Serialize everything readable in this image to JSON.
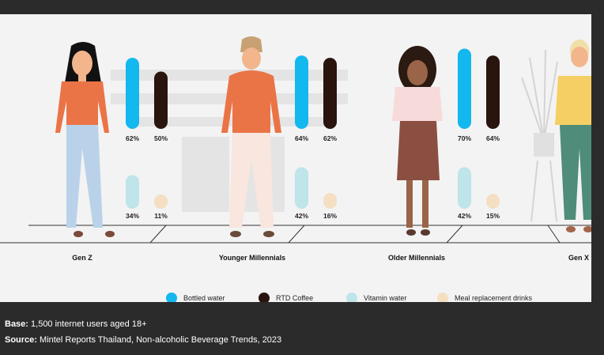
{
  "chart_data": {
    "type": "bar",
    "categories": [
      "Gen Z",
      "Younger Millennials",
      "Older Millennials",
      "Gen X"
    ],
    "series": [
      {
        "name": "Bottled water",
        "values": [
          62,
          64,
          70,
          null
        ],
        "color": "#12b8ee"
      },
      {
        "name": "RTD Coffee",
        "values": [
          50,
          62,
          64,
          null
        ],
        "color": "#2a140e"
      },
      {
        "name": "Vitamin water",
        "values": [
          34,
          42,
          42,
          null
        ],
        "color": "#bfe4ea"
      },
      {
        "name": "Meal replacement drinks",
        "values": [
          11,
          16,
          15,
          null
        ],
        "color": "#f4dfc3"
      }
    ],
    "labels": {
      "Bottled water": [
        "62%",
        "64%",
        "70%"
      ],
      "RTD Coffee": [
        "50%",
        "62%",
        "64%"
      ],
      "Vitamin water": [
        "34%",
        "42%",
        "42%"
      ],
      "Meal replacement drinks": [
        "11%",
        "16%",
        "15%"
      ]
    }
  },
  "legend": [
    {
      "label": "Bottled water",
      "color": "#12b8ee"
    },
    {
      "label": "RTD Coffee",
      "color": "#2a140e"
    },
    {
      "label": "Vitamin water",
      "color": "#bfe4ea"
    },
    {
      "label": "Meal replacement drinks",
      "color": "#f4dfc3"
    }
  ],
  "footer": {
    "base_label": "Base:",
    "base_text": " 1,500 internet users aged 18+",
    "source_label": "Source:",
    "source_text": " Mintel Reports Thailand, Non-alcoholic Beverage Trends, 2023"
  }
}
